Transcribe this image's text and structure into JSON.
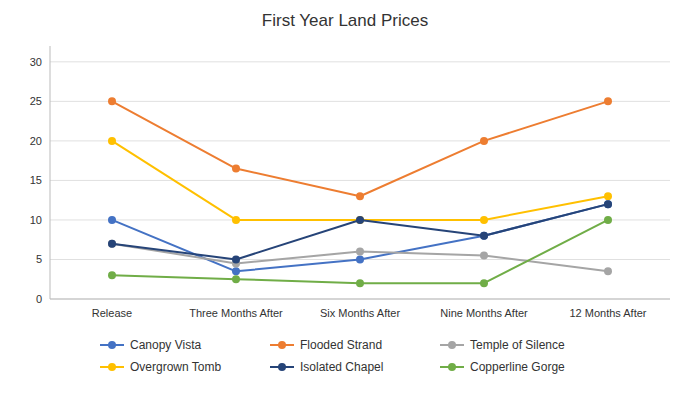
{
  "chart_data": {
    "type": "line",
    "title": "First Year Land Prices",
    "categories": [
      "Release",
      "Three Months After",
      "Six Months After",
      "Nine Months After",
      "12 Months After"
    ],
    "series": [
      {
        "name": "Canopy Vista",
        "color": "#4472C4",
        "marker": "circle",
        "values": [
          10,
          3.5,
          5,
          8,
          12
        ]
      },
      {
        "name": "Flooded Strand",
        "color": "#ED7D31",
        "marker": "circle",
        "values": [
          25,
          16.5,
          13,
          20,
          25
        ]
      },
      {
        "name": "Temple of Silence",
        "color": "#A5A5A5",
        "marker": "circle",
        "values": [
          7,
          4.5,
          6,
          5.5,
          3.5
        ]
      },
      {
        "name": "Overgrown Tomb",
        "color": "#FFC000",
        "marker": "circle",
        "values": [
          20,
          10,
          10,
          10,
          13
        ]
      },
      {
        "name": "Isolated Chapel",
        "color": "#264478",
        "marker": "circle",
        "values": [
          7,
          5,
          10,
          8,
          12
        ]
      },
      {
        "name": "Copperline Gorge",
        "color": "#70AD47",
        "marker": "circle",
        "values": [
          3,
          2.5,
          2,
          2,
          10
        ]
      }
    ],
    "ylim": [
      0,
      32
    ],
    "yticks": [
      0,
      5,
      10,
      15,
      20,
      25,
      30
    ],
    "grid": true,
    "legend": "bottom"
  }
}
